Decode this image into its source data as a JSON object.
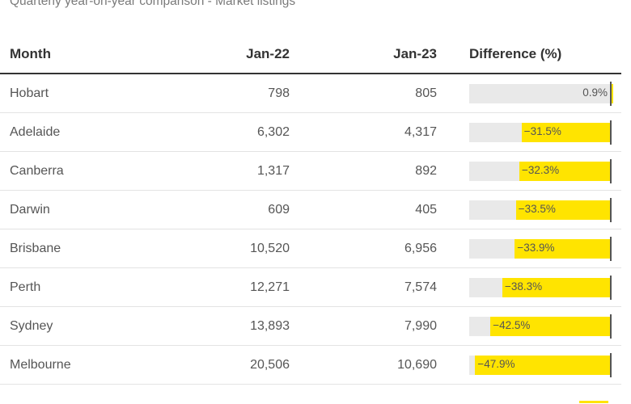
{
  "subtitle": "Quarterly year-on-year comparison - Market listings",
  "header": {
    "month": "Month",
    "jan22": "Jan-22",
    "jan23": "Jan-23",
    "diff": "Difference (%)"
  },
  "colors": {
    "bar": "#ffe400",
    "track": "#e9e9e9",
    "axis": "#555555"
  },
  "chart_data": {
    "type": "table",
    "title": "Quarterly year-on-year comparison - Market listings",
    "columns": [
      "Month",
      "Jan-22",
      "Jan-23",
      "Difference (%)"
    ],
    "diff_range": [
      -50,
      0
    ],
    "rows": [
      {
        "name": "Hobart",
        "jan22": "798",
        "jan23": "805",
        "diff": 0.9,
        "diff_label": "0.9%"
      },
      {
        "name": "Adelaide",
        "jan22": "6,302",
        "jan23": "4,317",
        "diff": -31.5,
        "diff_label": "−31.5%"
      },
      {
        "name": "Canberra",
        "jan22": "1,317",
        "jan23": "892",
        "diff": -32.3,
        "diff_label": "−32.3%"
      },
      {
        "name": "Darwin",
        "jan22": "609",
        "jan23": "405",
        "diff": -33.5,
        "diff_label": "−33.5%"
      },
      {
        "name": "Brisbane",
        "jan22": "10,520",
        "jan23": "6,956",
        "diff": -33.9,
        "diff_label": "−33.9%"
      },
      {
        "name": "Perth",
        "jan22": "12,271",
        "jan23": "7,574",
        "diff": -38.3,
        "diff_label": "−38.3%"
      },
      {
        "name": "Sydney",
        "jan22": "13,893",
        "jan23": "7,990",
        "diff": -42.5,
        "diff_label": "−42.5%"
      },
      {
        "name": "Melbourne",
        "jan22": "20,506",
        "jan23": "10,690",
        "diff": -47.9,
        "diff_label": "−47.9%"
      }
    ]
  }
}
